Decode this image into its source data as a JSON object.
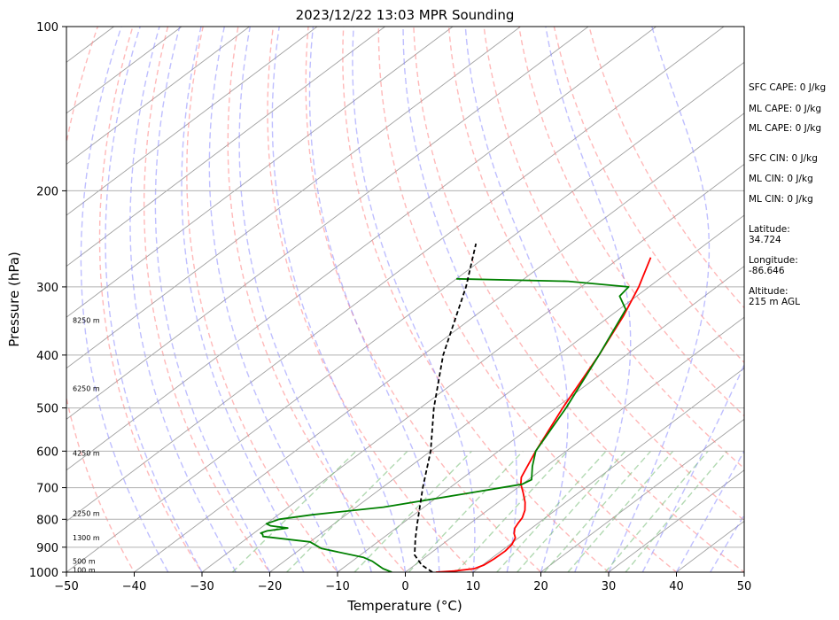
{
  "chart_data": {
    "type": "line",
    "title": "2023/12/22 13:03 MPR Sounding",
    "xlabel": "Temperature (°C)",
    "ylabel": "Pressure (hPa)",
    "xlim": [
      -50,
      50
    ],
    "ylim": [
      1000,
      100
    ],
    "y_scale": "log",
    "x_ticks": [
      "−50",
      "−40",
      "−30",
      "−20",
      "−10",
      "0",
      "10",
      "20",
      "30",
      "40",
      "50"
    ],
    "x_tick_values": [
      -50,
      -40,
      -30,
      -20,
      -10,
      0,
      10,
      20,
      30,
      40,
      50
    ],
    "y_ticks": [
      "100",
      "200",
      "300",
      "400",
      "500",
      "600",
      "700",
      "800",
      "900",
      "1000"
    ],
    "y_tick_values": [
      100,
      200,
      300,
      400,
      500,
      600,
      700,
      800,
      900,
      1000
    ],
    "grid": true,
    "skew_units_per_log_decade": 107,
    "series": [
      {
        "key": "temperature",
        "color": "#ff0000",
        "style": "solid",
        "points": [
          [
            4.5,
            1000
          ],
          [
            7,
            995
          ],
          [
            9.5,
            985
          ],
          [
            10.2,
            970
          ],
          [
            10.5,
            945
          ],
          [
            10.6,
            915
          ],
          [
            10.3,
            890
          ],
          [
            9.5,
            865
          ],
          [
            8.5,
            850
          ],
          [
            7.5,
            830
          ],
          [
            7,
            812
          ],
          [
            6.6,
            795
          ],
          [
            5.5,
            770
          ],
          [
            4,
            745
          ],
          [
            1.8,
            715
          ],
          [
            -0.2,
            690
          ],
          [
            -1.5,
            670
          ],
          [
            -4.5,
            600
          ],
          [
            -9,
            500
          ],
          [
            -14,
            400
          ],
          [
            -18,
            340
          ],
          [
            -21.5,
            300
          ],
          [
            -25.5,
            265
          ]
        ]
      },
      {
        "key": "dewpoint",
        "color": "#008000",
        "style": "solid",
        "points": [
          [
            -2,
            1000
          ],
          [
            -4,
            985
          ],
          [
            -6,
            965
          ],
          [
            -7,
            955
          ],
          [
            -9,
            940
          ],
          [
            -17,
            905
          ],
          [
            -20,
            880
          ],
          [
            -28,
            860
          ],
          [
            -28.5,
            852
          ],
          [
            -29,
            848
          ],
          [
            -28.5,
            840
          ],
          [
            -26,
            830
          ],
          [
            -29,
            822
          ],
          [
            -30,
            815
          ],
          [
            -29,
            800
          ],
          [
            -25,
            785
          ],
          [
            -16,
            760
          ],
          [
            -7,
            720
          ],
          [
            0,
            690
          ],
          [
            0.5,
            677
          ],
          [
            -2,
            640
          ],
          [
            -4.5,
            600
          ],
          [
            -8.5,
            500
          ],
          [
            -14,
            400
          ],
          [
            -19,
            330
          ],
          [
            -22.5,
            312
          ],
          [
            -23,
            300
          ],
          [
            -33,
            293
          ],
          [
            -50,
            290
          ]
        ]
      },
      {
        "key": "parcel",
        "color": "#000000",
        "style": "dashed",
        "points": [
          [
            4,
            1000
          ],
          [
            3,
            990
          ],
          [
            1,
            970
          ],
          [
            -2,
            930
          ],
          [
            -5,
            870
          ],
          [
            -8,
            810
          ],
          [
            -14,
            700
          ],
          [
            -20,
            600
          ],
          [
            -28,
            500
          ],
          [
            -37,
            400
          ],
          [
            -47,
            300
          ],
          [
            -54,
            250
          ]
        ]
      }
    ],
    "height_labels": [
      {
        "text": "100 m",
        "p": 990
      },
      {
        "text": "500 m",
        "p": 955
      },
      {
        "text": "1300 m",
        "p": 865
      },
      {
        "text": "2250 m",
        "p": 780
      },
      {
        "text": "4250 m",
        "p": 605
      },
      {
        "text": "6250 m",
        "p": 460
      },
      {
        "text": "8250 m",
        "p": 345
      }
    ],
    "background": {
      "isotherm_color": "#888888",
      "dry_adiabat_color": "#ff7f7f",
      "moist_adiabat_color": "#7f7fff",
      "mixing_ratio_color": "#7fbf7f",
      "mixing_ratio_bases": [
        -25.5,
        -17.5,
        -7.5,
        0.5,
        7.5,
        13.5,
        16.5,
        20.5,
        24,
        29.5,
        32.5
      ]
    },
    "stats": [
      "SFC CAPE: 0 J/kg",
      "ML CAPE: 0 J/kg",
      "ML CAPE: 0 J/kg",
      "SFC CIN: 0 J/kg",
      "ML CIN: 0 J/kg",
      "ML CIN: 0 J/kg"
    ],
    "location": [
      {
        "label": "Latitude:",
        "value": "34.724"
      },
      {
        "label": "Longitude:",
        "value": "-86.646"
      },
      {
        "label": "Altitude:",
        "value": "215 m AGL"
      }
    ]
  }
}
